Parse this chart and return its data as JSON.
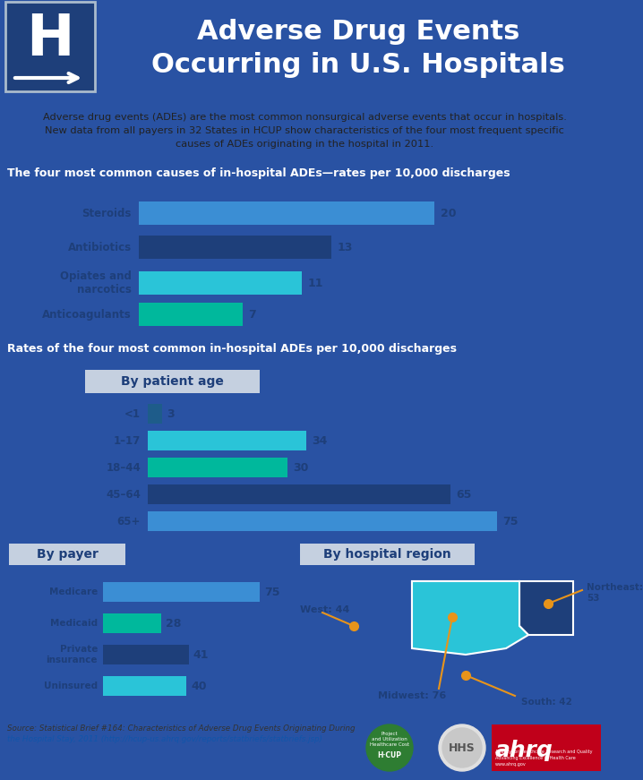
{
  "title": "Adverse Drug Events\nOccurring in U.S. Hospitals",
  "header_bg": "#4a8faa",
  "sign_bg": "#1e3f7a",
  "body_bg": "#2952a3",
  "panel_bg": "#eef2f7",
  "white": "#ffffff",
  "intro_text_line1": "Adverse drug events (ADEs) are the most common nonsurgical adverse events that occur in hospitals.",
  "intro_text_line2": "New data from all payers in 32 States in HCUP show characteristics of the four most frequent specific",
  "intro_text_line3": "causes of ADEs originating in the hospital in 2011.",
  "section1_title": "The four most common causes of in-hospital ADEs—rates per 10,000 discharges",
  "section2_title": "Rates of the four most common in-hospital ADEs per 10,000 discharges",
  "causes_labels": [
    "Steroids",
    "Antibiotics",
    "Opiates and\nnarcotics",
    "Anticoagulants"
  ],
  "causes_values": [
    20,
    13,
    11,
    7
  ],
  "causes_colors": [
    "#3b8ed4",
    "#1e3f7a",
    "#2ac4d8",
    "#00b89c"
  ],
  "age_title": "By patient age",
  "age_labels": [
    "<1",
    "1–17",
    "18–44",
    "45–64",
    "65+"
  ],
  "age_values": [
    3,
    34,
    30,
    65,
    75
  ],
  "age_colors": [
    "#1e5c8a",
    "#2ac4d8",
    "#00b89c",
    "#1e3f7a",
    "#3b8ed4"
  ],
  "payer_title": "By payer",
  "payer_labels": [
    "Medicare",
    "Medicaid",
    "Private\ninsurance",
    "Uninsured"
  ],
  "payer_values": [
    75,
    28,
    41,
    40
  ],
  "payer_colors": [
    "#3b8ed4",
    "#00b89c",
    "#1e3f7a",
    "#2ac4d8"
  ],
  "region_title": "By hospital region",
  "source_line1": "Source: Statistical Brief #164: Characteristics of Adverse Drug Events Originating During",
  "source_line2": "the Hospital Stay, 2011 (http://hcup-us.ahrq.gov/reports/statbriefs/statbriefs.jsp)",
  "dark_blue": "#1e3f7a",
  "medium_blue": "#3b8ed4",
  "teal": "#00b89c",
  "light_blue": "#2ac4d8",
  "section_title_bg": "#1e3f7a",
  "section_title_color": "#ffffff",
  "subsection_bg": "#c5d0e0",
  "subsection_color": "#1e3f7a",
  "orange": "#e8941a"
}
